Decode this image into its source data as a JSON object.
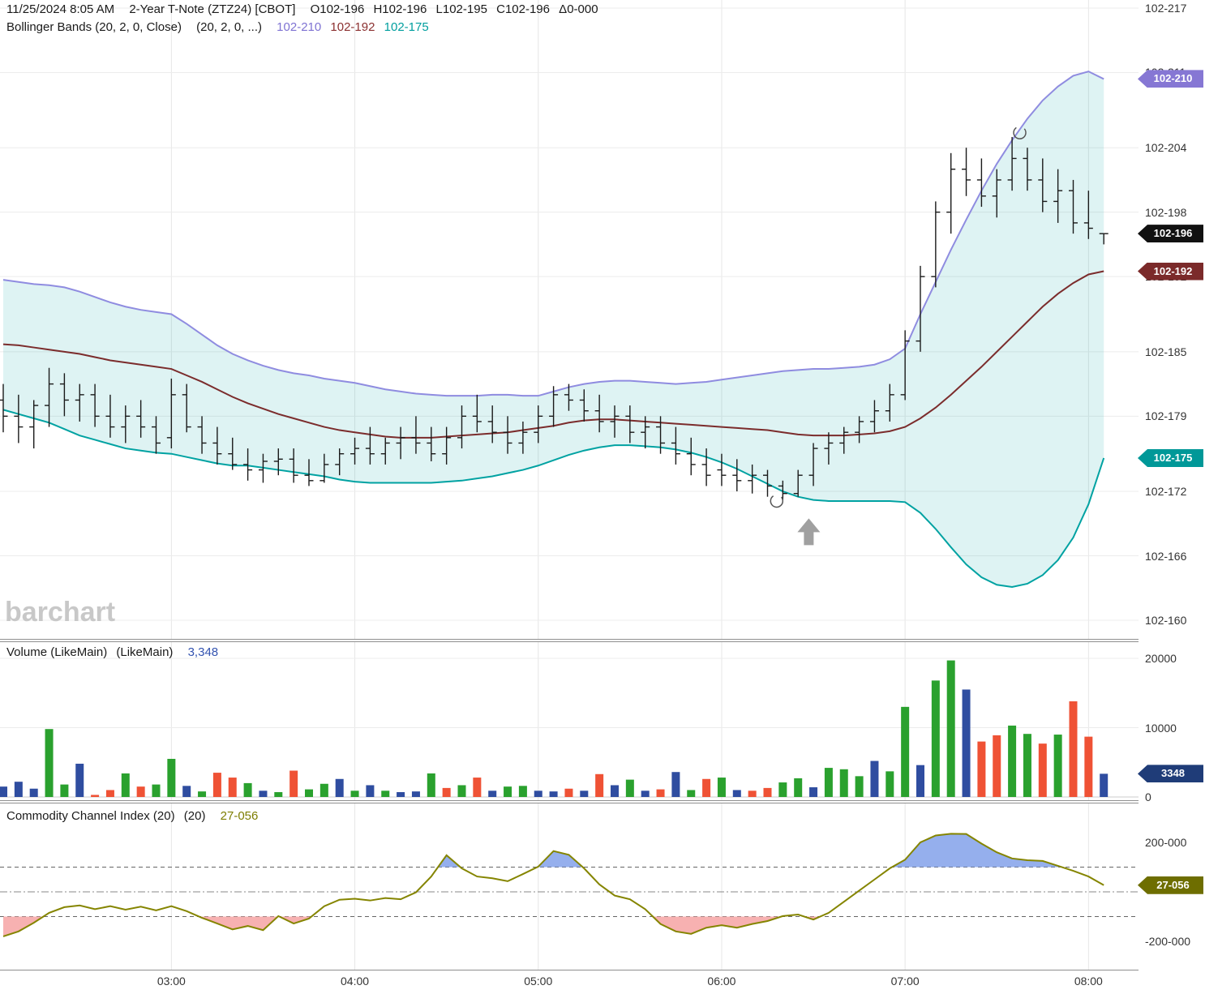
{
  "header": {
    "datetime": "11/25/2024 8:05 AM",
    "symbol": "2-Year T-Note (ZTZ24) [CBOT]",
    "open": "O102-196",
    "high": "H102-196",
    "low": "L102-195",
    "close": "C102-196",
    "change": "Δ0-000",
    "study_line": {
      "name": "Bollinger Bands (20, 2, 0, Close)",
      "params": "(20, 2, 0, ...)",
      "upper": "102-210",
      "middle": "102-192",
      "lower": "102-175"
    }
  },
  "volume_header": {
    "name": "Volume (LikeMain)",
    "params": "(LikeMain)",
    "value": "3,348"
  },
  "cci_header": {
    "name": "Commodity Channel Index (20)",
    "params": "(20)",
    "value": "27-056"
  },
  "watermark": "barchart",
  "colors": {
    "upper_band": "#8f8ce0",
    "upper_badge": "#8677d4",
    "middle_band": "#7b2c2c",
    "middle_badge": "#7b2a2a",
    "lower_band": "#00a2a2",
    "lower_badge": "#009898",
    "band_fill": "#00a5a5",
    "bar": "#1a1a1a",
    "vol_up": "#2aa12e",
    "vol_down": "#ef5235",
    "vol_flat": "#2f4da0",
    "vol_badge": "#1f3c78",
    "cci_line": "#858500",
    "cci_fill_high": "#7b9be8",
    "cci_fill_low": "#f6a9a9",
    "cci_badge": "#6e6e00",
    "close_badge": "#111111",
    "grid": "#e6e6e6",
    "grid_h": "#ececec",
    "separator": "#8f8f8f",
    "axis_text": "#333333",
    "watermark": "#c8c8c8",
    "annotation": "#a0a0a0"
  },
  "chart_data": [
    {
      "type": "bar",
      "subtype": "ohlc-bars-with-bollinger-bands",
      "title": "2-Year T-Note (ZTZ24) [CBOT]",
      "price_format": "102-XXX (prices are 102 + XXX tenths of 32nds)",
      "x_ticks": [
        {
          "label": "03:00",
          "index": 11
        },
        {
          "label": "04:00",
          "index": 23
        },
        {
          "label": "05:00",
          "index": 35
        },
        {
          "label": "06:00",
          "index": 47
        },
        {
          "label": "07:00",
          "index": 59
        },
        {
          "label": "08:00",
          "index": 71
        }
      ],
      "y_ticks": [
        {
          "label": "102-217",
          "value": 217
        },
        {
          "label": "102-211",
          "value": 211
        },
        {
          "label": "102-204",
          "value": 204
        },
        {
          "label": "102-198",
          "value": 198
        },
        {
          "label": "102-192",
          "value": 192
        },
        {
          "label": "102-185",
          "value": 185
        },
        {
          "label": "102-179",
          "value": 179
        },
        {
          "label": "102-172",
          "value": 172
        },
        {
          "label": "102-166",
          "value": 166
        },
        {
          "label": "102-160",
          "value": 160
        }
      ],
      "ylim": [
        160,
        217
      ],
      "bars": [
        [
          180.5,
          182,
          177.5,
          179
        ],
        [
          179,
          181,
          176.5,
          178
        ],
        [
          178,
          180.5,
          176,
          180
        ],
        [
          180,
          183.5,
          178,
          182
        ],
        [
          182,
          183,
          179,
          180.5
        ],
        [
          180.5,
          182,
          178.5,
          181
        ],
        [
          181,
          182,
          178,
          179
        ],
        [
          179,
          181,
          177,
          178
        ],
        [
          178,
          180,
          176.5,
          179
        ],
        [
          179,
          180.5,
          177,
          178
        ],
        [
          178,
          179,
          175.5,
          176.5
        ],
        [
          177,
          182.5,
          176,
          181
        ],
        [
          181,
          182,
          177.5,
          178
        ],
        [
          178,
          179,
          175.5,
          176.5
        ],
        [
          176.5,
          178,
          174.5,
          175.5
        ],
        [
          175.5,
          177,
          174,
          174.5
        ],
        [
          174.5,
          176,
          173,
          174
        ],
        [
          174,
          175.5,
          172.8,
          174.8
        ],
        [
          174.8,
          176,
          173.5,
          175
        ],
        [
          175,
          176,
          172.8,
          173.5
        ],
        [
          173.5,
          175,
          172.5,
          173
        ],
        [
          173,
          175.5,
          172.8,
          174.5
        ],
        [
          174.5,
          176,
          173.5,
          175.5
        ],
        [
          175.5,
          177,
          174.5,
          176
        ],
        [
          176,
          178,
          174.5,
          175.5
        ],
        [
          175.5,
          177,
          174.5,
          176.5
        ],
        [
          176.5,
          178,
          175,
          177
        ],
        [
          177,
          179,
          175.5,
          176.5
        ],
        [
          176.5,
          178,
          174.8,
          175.5
        ],
        [
          175.5,
          178,
          174.5,
          177
        ],
        [
          177,
          180,
          176,
          179
        ],
        [
          179,
          181,
          177.5,
          178.5
        ],
        [
          178.5,
          180,
          176.5,
          177.5
        ],
        [
          177.5,
          179,
          175.5,
          176.5
        ],
        [
          176.5,
          178.5,
          175.5,
          177.5
        ],
        [
          177.5,
          180,
          176.5,
          179
        ],
        [
          179,
          181.8,
          178,
          181
        ],
        [
          181,
          182,
          179.5,
          180.5
        ],
        [
          180.5,
          181.5,
          178.5,
          179.5
        ],
        [
          179.5,
          181,
          177.5,
          178.5
        ],
        [
          178.5,
          180,
          177,
          179
        ],
        [
          179,
          180,
          176.5,
          177.5
        ],
        [
          177.5,
          179,
          176,
          178
        ],
        [
          178,
          179,
          175.5,
          176.5
        ],
        [
          176.5,
          178,
          174.5,
          175.5
        ],
        [
          175.5,
          177,
          173.5,
          174.5
        ],
        [
          174.5,
          176,
          172.5,
          173.5
        ],
        [
          174,
          175.5,
          172.5,
          173.5
        ],
        [
          173.5,
          175,
          172,
          173
        ],
        [
          173,
          174.5,
          171.8,
          173.5
        ],
        [
          173.5,
          174,
          171.5,
          172.5
        ],
        [
          172.5,
          173,
          171.2,
          171.8
        ],
        [
          171.8,
          174,
          171.5,
          173.5
        ],
        [
          173.5,
          176.5,
          172.5,
          176
        ],
        [
          176,
          177.5,
          174.5,
          176.5
        ],
        [
          176.5,
          178,
          175.5,
          177.5
        ],
        [
          177.5,
          179,
          176.5,
          178.5
        ],
        [
          178.5,
          180.5,
          177.5,
          179.5
        ],
        [
          179.5,
          182,
          178.5,
          181
        ],
        [
          181,
          187,
          180.5,
          186
        ],
        [
          186,
          193,
          185,
          192
        ],
        [
          192,
          199,
          191,
          198
        ],
        [
          198,
          203.5,
          196,
          202
        ],
        [
          202,
          204,
          199.5,
          201
        ],
        [
          201,
          203,
          198.5,
          199.5
        ],
        [
          199.5,
          202,
          197.5,
          201
        ],
        [
          201,
          205,
          200,
          203
        ],
        [
          203,
          204,
          200,
          201
        ],
        [
          201,
          203,
          198,
          199
        ],
        [
          199,
          202,
          197,
          200
        ],
        [
          200,
          201,
          196,
          197
        ],
        [
          197,
          200,
          195.5,
          196.5
        ],
        [
          196,
          196,
          195,
          196
        ]
      ],
      "series": [
        {
          "name": "Bollinger Upper (20,2)",
          "values": [
            191.7,
            191.5,
            191.3,
            191.2,
            191.0,
            190.6,
            190.1,
            189.6,
            189.2,
            188.9,
            188.7,
            188.5,
            187.6,
            186.6,
            185.6,
            184.8,
            184.2,
            183.7,
            183.3,
            183.0,
            182.8,
            182.5,
            182.3,
            182.1,
            181.8,
            181.5,
            181.3,
            181.1,
            181.0,
            180.9,
            180.9,
            180.9,
            181.0,
            181.0,
            180.9,
            180.9,
            181.3,
            181.7,
            182.0,
            182.2,
            182.3,
            182.3,
            182.2,
            182.1,
            182.0,
            182.1,
            182.2,
            182.4,
            182.6,
            182.8,
            183.0,
            183.2,
            183.3,
            183.4,
            183.4,
            183.5,
            183.6,
            183.8,
            184.3,
            185.3,
            188.5,
            191.5,
            194.5,
            197.3,
            200.0,
            202.5,
            204.7,
            206.7,
            208.4,
            209.7,
            210.7,
            211.1,
            210.4
          ]
        },
        {
          "name": "Bollinger Middle (SMA 20)",
          "values": [
            185.7,
            185.6,
            185.4,
            185.2,
            185.0,
            184.8,
            184.5,
            184.2,
            184.0,
            183.8,
            183.6,
            183.4,
            182.8,
            182.2,
            181.5,
            180.8,
            180.2,
            179.7,
            179.2,
            178.8,
            178.4,
            178.0,
            177.7,
            177.5,
            177.3,
            177.1,
            177.0,
            177.0,
            177.0,
            177.1,
            177.2,
            177.3,
            177.4,
            177.5,
            177.7,
            177.9,
            178.1,
            178.4,
            178.6,
            178.7,
            178.7,
            178.6,
            178.5,
            178.4,
            178.3,
            178.2,
            178.1,
            178.0,
            177.9,
            177.8,
            177.7,
            177.5,
            177.3,
            177.2,
            177.2,
            177.2,
            177.3,
            177.4,
            177.6,
            178.0,
            178.8,
            179.8,
            181.0,
            182.3,
            183.6,
            185.0,
            186.4,
            187.8,
            189.2,
            190.4,
            191.4,
            192.2,
            192.5
          ]
        },
        {
          "name": "Bollinger Lower (20,2)",
          "values": [
            179.6,
            179.2,
            178.8,
            178.4,
            177.8,
            177.2,
            176.8,
            176.4,
            176.0,
            175.8,
            175.6,
            175.5,
            175.2,
            174.9,
            174.6,
            174.4,
            174.4,
            174.2,
            174.0,
            173.8,
            173.6,
            173.4,
            173.1,
            172.9,
            172.8,
            172.8,
            172.8,
            172.8,
            172.8,
            172.9,
            173.0,
            173.2,
            173.4,
            173.7,
            174.0,
            174.4,
            174.9,
            175.4,
            175.8,
            176.1,
            176.3,
            176.3,
            176.2,
            176.1,
            175.9,
            175.6,
            175.2,
            174.7,
            174.1,
            173.4,
            172.7,
            172.0,
            171.5,
            171.2,
            171.1,
            171.1,
            171.1,
            171.1,
            171.1,
            171.0,
            170.0,
            168.5,
            166.8,
            165.2,
            164.0,
            163.3,
            163.1,
            163.4,
            164.2,
            165.6,
            167.7,
            170.8,
            175.1
          ]
        }
      ],
      "last_values": {
        "upper_label": "102-210",
        "close_label": "102-196",
        "middle_label": "102-192",
        "lower_label": "102-175"
      },
      "annotations": [
        {
          "type": "circle",
          "bar_index": 50.6,
          "price": 171.1
        },
        {
          "type": "up-arrow",
          "bar_index": 52.7,
          "price": 168.2
        },
        {
          "type": "circle",
          "bar_index": 66.5,
          "price": 205.4
        }
      ]
    },
    {
      "type": "bar",
      "title": "Volume (LikeMain)",
      "ylim": [
        0,
        21000
      ],
      "y_ticks": [
        {
          "label": "20000",
          "value": 20000
        },
        {
          "label": "10000",
          "value": 10000
        },
        {
          "label": "0",
          "value": 0
        }
      ],
      "values": [
        1500,
        2200,
        1200,
        9800,
        1800,
        4800,
        300,
        1000,
        3400,
        1500,
        1800,
        5500,
        1600,
        800,
        3500,
        2800,
        2000,
        900,
        700,
        3800,
        1100,
        1900,
        2600,
        900,
        1700,
        900,
        700,
        800,
        3400,
        1300,
        1700,
        2800,
        900,
        1500,
        1600,
        900,
        800,
        1200,
        900,
        3300,
        1700,
        2500,
        900,
        1100,
        3600,
        1000,
        2600,
        2800,
        1000,
        900,
        1300,
        2100,
        2700,
        1400,
        4200,
        4000,
        3000,
        5200,
        3700,
        13000,
        4600,
        16800,
        19700,
        15500,
        8000,
        8900,
        10300,
        9100,
        7700,
        9000,
        13800,
        8700,
        3348
      ],
      "states": "bbbggbrrgrggbgrrgbgrggbgbgbbgrgrbggbbrbrbgbrbgrgbrrggbgggbggbggbrrggrgrrb",
      "state_legend": {
        "g": "up (green)",
        "r": "down (red)",
        "b": "unchanged (blue)"
      },
      "last_label": "3348",
      "last_value": 3348
    },
    {
      "type": "line",
      "title": "Commodity Channel Index (20)",
      "ylim": [
        -290,
        290
      ],
      "y_ticks": [
        {
          "label": "200-000",
          "value": 200
        },
        {
          "label": "-200-000",
          "value": -200
        }
      ],
      "thresholds": {
        "upper": 100,
        "zero": 0,
        "lower": -100
      },
      "values": [
        -180,
        -160,
        -125,
        -85,
        -62,
        -55,
        -70,
        -58,
        -72,
        -60,
        -75,
        -58,
        -78,
        -105,
        -128,
        -152,
        -138,
        -155,
        -98,
        -128,
        -108,
        -58,
        -32,
        -28,
        -35,
        -25,
        -30,
        -2,
        62,
        148,
        95,
        62,
        55,
        43,
        72,
        102,
        165,
        150,
        95,
        30,
        -15,
        -30,
        -70,
        -130,
        -160,
        -170,
        -145,
        -135,
        -145,
        -130,
        -118,
        -98,
        -92,
        -112,
        -85,
        -40,
        5,
        50,
        95,
        130,
        200,
        228,
        235,
        234,
        195,
        160,
        135,
        128,
        125,
        105,
        85,
        62,
        27.056
      ],
      "last_label": "27-056",
      "last_value": 27.056
    }
  ]
}
